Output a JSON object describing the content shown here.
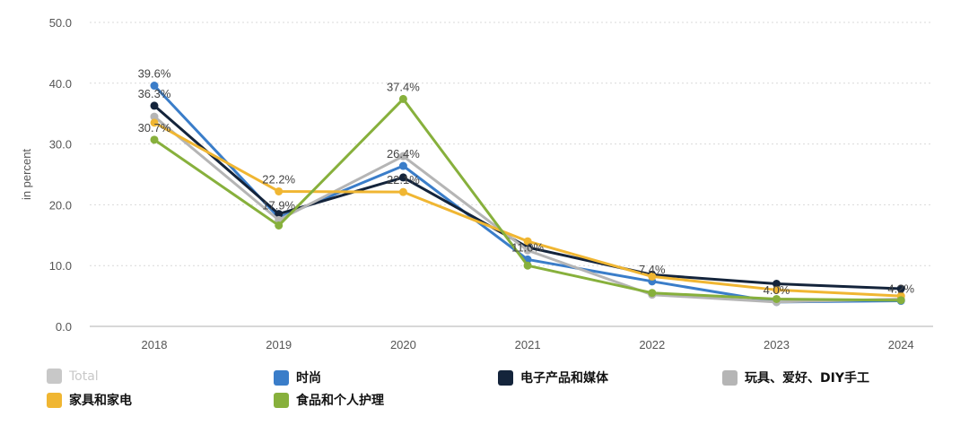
{
  "chart_data": {
    "type": "line",
    "x": [
      "2018",
      "2019",
      "2020",
      "2021",
      "2022",
      "2023",
      "2024"
    ],
    "ylabel": "in percent",
    "ylim": [
      0,
      50
    ],
    "yticks": [
      "0.0",
      "10.0",
      "20.0",
      "30.0",
      "40.0",
      "50.0"
    ],
    "grid": true,
    "legend_position": "bottom",
    "series": [
      {
        "name": "Total",
        "color": "#c8c8c8",
        "hidden": true,
        "values": [
          35,
          18,
          27.5,
          12,
          6,
          4.2,
          4.5
        ]
      },
      {
        "name": "时尚",
        "color": "#3a7dc9",
        "values": [
          39.6,
          17.9,
          26.4,
          11.0,
          7.4,
          4.0,
          4.2
        ]
      },
      {
        "name": "电子产品和媒体",
        "color": "#14243b",
        "values": [
          36.3,
          18.5,
          24.5,
          13.0,
          8.5,
          7.0,
          6.2
        ]
      },
      {
        "name": "玩具、爱好、DIY手工",
        "color": "#b5b5b5",
        "values": [
          34.5,
          17.5,
          28.0,
          12.5,
          5.2,
          4.0,
          4.5
        ]
      },
      {
        "name": "家具和家电",
        "color": "#f0b632",
        "values": [
          33.5,
          22.2,
          22.1,
          14.0,
          8.2,
          6.0,
          5.0
        ]
      },
      {
        "name": "食品和个人护理",
        "color": "#87b03c",
        "values": [
          30.7,
          16.6,
          37.4,
          10.0,
          5.5,
          4.5,
          4.3
        ]
      }
    ],
    "data_labels": [
      {
        "text": "39.6%",
        "series": "时尚",
        "x": "2018",
        "value": 39.6
      },
      {
        "text": "36.3%",
        "series": "电子产品和媒体",
        "x": "2018",
        "value": 36.3
      },
      {
        "text": "30.7%",
        "series": "食品和个人护理",
        "x": "2018",
        "value": 30.7
      },
      {
        "text": "22.2%",
        "series": "家具和家电",
        "x": "2019",
        "value": 22.2
      },
      {
        "text": "17.9%",
        "series": "时尚",
        "x": "2019",
        "value": 17.9
      },
      {
        "text": "37.4%",
        "series": "食品和个人护理",
        "x": "2020",
        "value": 37.4
      },
      {
        "text": "26.4%",
        "series": "时尚",
        "x": "2020",
        "value": 26.4
      },
      {
        "text": "22.1%",
        "series": "家具和家电",
        "x": "2020",
        "value": 22.1
      },
      {
        "text": "11.0%",
        "series": "时尚",
        "x": "2021",
        "value": 11.0
      },
      {
        "text": "7.4%",
        "series": "时尚",
        "x": "2022",
        "value": 7.4
      },
      {
        "text": "4.0%",
        "series": "时尚",
        "x": "2023",
        "value": 4.0
      },
      {
        "text": "4.2%",
        "series": "时尚",
        "x": "2024",
        "value": 4.2
      }
    ]
  }
}
